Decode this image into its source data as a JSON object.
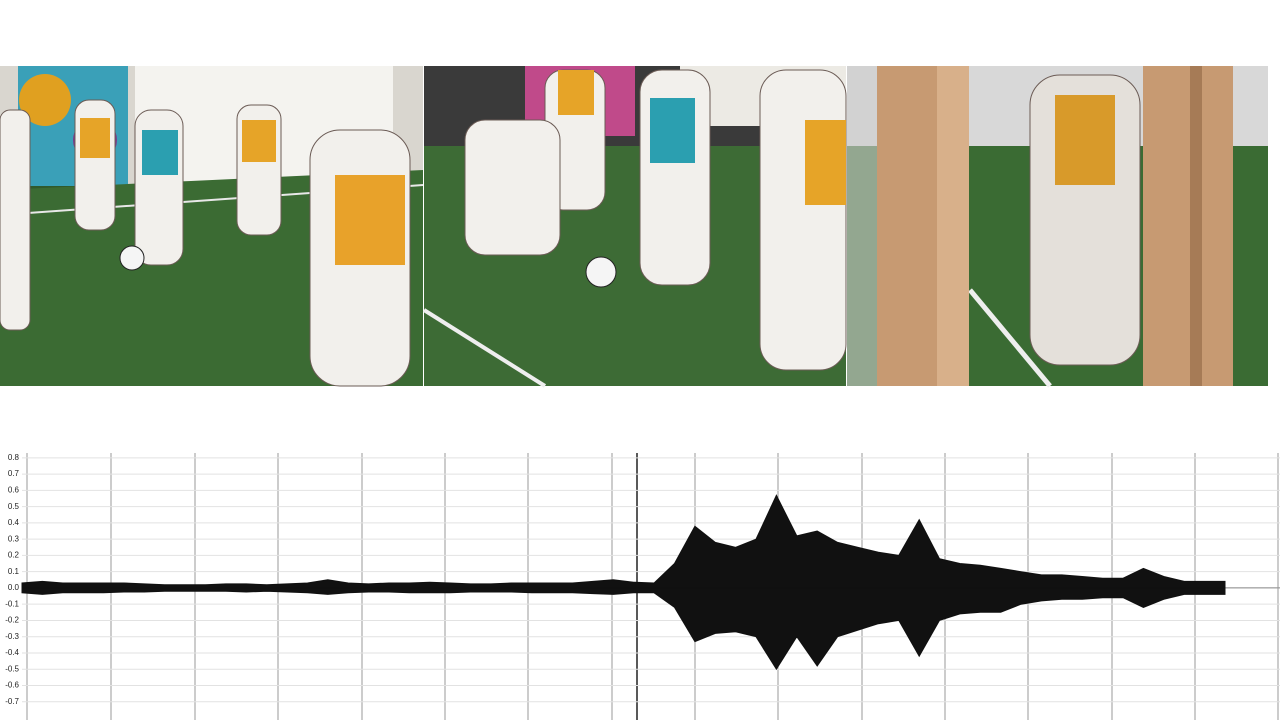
{
  "chart_data": {
    "type": "area",
    "ylim": [
      -0.81,
      0.83
    ],
    "yticks": [
      {
        "value": 0.8,
        "label": "0.8"
      },
      {
        "value": 0.7,
        "label": "0.7"
      },
      {
        "value": 0.6,
        "label": "0.6"
      },
      {
        "value": 0.5,
        "label": "0.5"
      },
      {
        "value": 0.4,
        "label": "0.4"
      },
      {
        "value": 0.3,
        "label": "0.3"
      },
      {
        "value": 0.2,
        "label": "0.2"
      },
      {
        "value": 0.1,
        "label": "0.1"
      },
      {
        "value": 0,
        "label": "0.0"
      },
      {
        "value": -0.1,
        "label": "-0.1"
      },
      {
        "value": -0.2,
        "label": "-0.2"
      },
      {
        "value": -0.3,
        "label": "-0.3"
      },
      {
        "value": -0.4,
        "label": "-0.4"
      },
      {
        "value": -0.5,
        "label": "-0.5"
      },
      {
        "value": -0.6,
        "label": "-0.6"
      },
      {
        "value": -0.7,
        "label": "-0.7"
      }
    ],
    "grid": true,
    "series": [
      {
        "color": "#111111",
        "values": [
          0.03,
          0.04,
          0.03,
          0.03,
          0.03,
          0.03,
          0.025,
          0.02,
          0.02,
          0.02,
          0.025,
          0.025,
          0.02,
          0.025,
          0.03,
          0.05,
          0.03,
          0.025,
          0.03,
          0.03,
          0.035,
          0.03,
          0.025,
          0.025,
          0.03,
          0.03,
          0.03,
          0.03,
          0.04,
          0.05,
          0.035,
          0.03,
          0.15,
          0.38,
          0.28,
          0.25,
          0.3,
          0.57,
          0.32,
          0.35,
          0.28,
          0.25,
          0.22,
          0.2,
          0.42,
          0.18,
          0.15,
          0.14,
          0.12,
          0.1,
          0.08,
          0.08,
          0.07,
          0.06,
          0.06,
          0.12,
          0.07,
          0.04,
          0.04,
          0.04
        ]
      },
      {
        "color": "#111111",
        "values": [
          -0.03,
          -0.04,
          -0.03,
          -0.03,
          -0.03,
          -0.025,
          -0.025,
          -0.02,
          -0.02,
          -0.02,
          -0.02,
          -0.025,
          -0.02,
          -0.025,
          -0.03,
          -0.04,
          -0.03,
          -0.025,
          -0.025,
          -0.03,
          -0.03,
          -0.03,
          -0.025,
          -0.025,
          -0.025,
          -0.03,
          -0.03,
          -0.03,
          -0.035,
          -0.04,
          -0.03,
          -0.03,
          -0.12,
          -0.33,
          -0.28,
          -0.27,
          -0.3,
          -0.5,
          -0.3,
          -0.48,
          -0.3,
          -0.26,
          -0.22,
          -0.2,
          -0.42,
          -0.2,
          -0.16,
          -0.15,
          -0.15,
          -0.1,
          -0.08,
          -0.07,
          -0.07,
          -0.06,
          -0.06,
          -0.12,
          -0.07,
          -0.04,
          -0.04,
          -0.04
        ]
      }
    ]
  }
}
